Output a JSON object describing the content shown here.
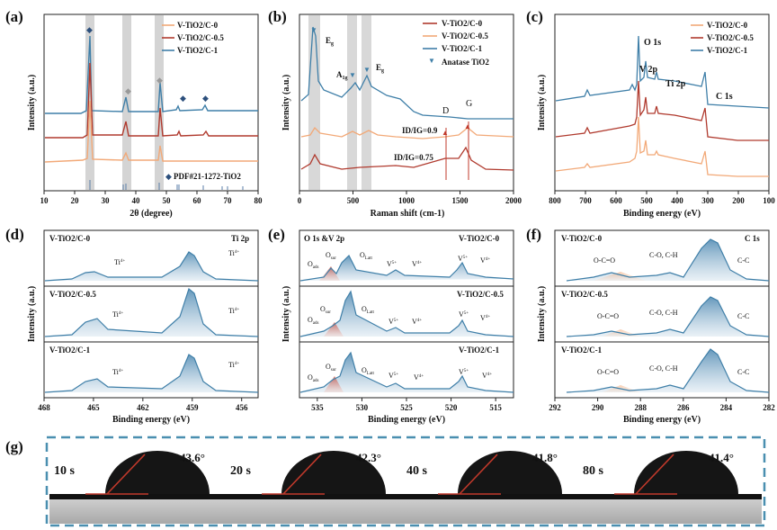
{
  "colors": {
    "c0": "#f2a978",
    "c05": "#b03a2e",
    "c1": "#3f7fa8",
    "peak_fill": "#c9d9e6",
    "highlight": "#c8c8c8",
    "contact_frame": "#4a8fb0",
    "angle_text": "#c0392b"
  },
  "legends": {
    "a": [
      "V-TiO2/C-0",
      "V-TiO2/C-0.5",
      "V-TiO2/C-1"
    ],
    "b": [
      "V-TiO2/C-0",
      "V-TiO2/C-0.5",
      "V-TiO2/C-1"
    ],
    "c": [
      "V-TiO2/C-0",
      "V-TiO2/C-0.5",
      "V-TiO2/C-1"
    ],
    "b_anatase": "Anatase TiO2",
    "a_pdf": "PDF#21-1272-TiO2"
  },
  "chart_data": [
    {
      "panel": "(a)",
      "type": "line",
      "xlabel": "2θ (degree)",
      "ylabel": "Intensity (a.u.)",
      "xlim": [
        10,
        80
      ],
      "xticks": [
        10,
        20,
        30,
        40,
        50,
        60,
        70,
        80
      ],
      "highlight_x": [
        25.3,
        37.8,
        48.0
      ],
      "series": [
        "V-TiO2/C-0",
        "V-TiO2/C-0.5",
        "V-TiO2/C-1"
      ],
      "peaks_2theta": [
        25.3,
        37.8,
        48.0,
        53.9,
        55.1,
        62.7,
        68.8,
        70.3,
        75.0
      ],
      "markers": [
        "◆",
        "◆",
        "◆",
        "◆",
        "◆"
      ],
      "reference": "PDF#21-1272-TiO2"
    },
    {
      "panel": "(b)",
      "type": "line",
      "xlabel": "Raman shift (cm-1)",
      "ylabel": "Intensity (a.u.)",
      "xlim": [
        0,
        2000
      ],
      "xticks": [
        0,
        500,
        1000,
        1500,
        2000
      ],
      "highlight_x": [
        144,
        515,
        639
      ],
      "peaks": [
        "Eg",
        "A1g",
        "Eg",
        "D",
        "G"
      ],
      "ratios": [
        "ID/IG=0.9",
        "ID/IG=0.75"
      ],
      "series": [
        "V-TiO2/C-0",
        "V-TiO2/C-0.5",
        "V-TiO2/C-1"
      ]
    },
    {
      "panel": "(c)",
      "type": "line",
      "xlabel": "Binding energy (eV)",
      "ylabel": "Intensity (a.u.)",
      "xlim": [
        800,
        100
      ],
      "xticks": [
        800,
        700,
        600,
        500,
        400,
        300,
        200,
        100
      ],
      "peak_labels": [
        "O 1s",
        "V 2p",
        "Ti 2p",
        "C 1s"
      ],
      "series": [
        "V-TiO2/C-0",
        "V-TiO2/C-0.5",
        "V-TiO2/C-1"
      ]
    },
    {
      "panel": "(d)",
      "type": "line",
      "title": "Ti 2p",
      "xlabel": "Binding energy (eV)",
      "ylabel": "Intensity (a.u.)",
      "xlim": [
        468,
        455
      ],
      "xticks": [
        468,
        465,
        462,
        459,
        456
      ],
      "peaks_eV": [
        464.7,
        459.0
      ],
      "peak_labels": [
        "Ti4+",
        "Ti4+"
      ],
      "subpanels": [
        "V-TiO2/C-0",
        "V-TiO2/C-0.5",
        "V-TiO2/C-1"
      ]
    },
    {
      "panel": "(e)",
      "type": "line",
      "title": "O 1s &V 2p",
      "xlabel": "Binding energy (eV)",
      "ylabel": "Intensity (a.u.)",
      "xlim": [
        537,
        513
      ],
      "xticks": [
        535,
        530,
        525,
        520,
        515
      ],
      "peak_labels": [
        "Oads",
        "Osur",
        "OLatt",
        "V5+",
        "V4+",
        "V5+",
        "V4+"
      ],
      "subpanels": [
        "V-TiO2/C-0",
        "V-TiO2/C-0.5",
        "V-TiO2/C-1"
      ]
    },
    {
      "panel": "(f)",
      "type": "line",
      "title": "C 1s",
      "xlabel": "Binding energy (eV)",
      "ylabel": "Intensity (a.u.)",
      "xlim": [
        292,
        282
      ],
      "xticks": [
        292,
        290,
        288,
        286,
        284,
        282
      ],
      "peaks_eV": [
        288.8,
        286.3,
        284.8
      ],
      "peak_labels": [
        "O-C=O",
        "C-O, C-H",
        "C-C"
      ],
      "subpanels": [
        "V-TiO2/C-0",
        "V-TiO2/C-0.5",
        "V-TiO2/C-1"
      ]
    }
  ],
  "g": {
    "label": "(g)",
    "frames": [
      {
        "time": "10 s",
        "angle": "43.6°"
      },
      {
        "time": "20 s",
        "angle": "42.3°"
      },
      {
        "time": "40 s",
        "angle": "41.8°"
      },
      {
        "time": "80 s",
        "angle": "41.4°"
      }
    ]
  }
}
